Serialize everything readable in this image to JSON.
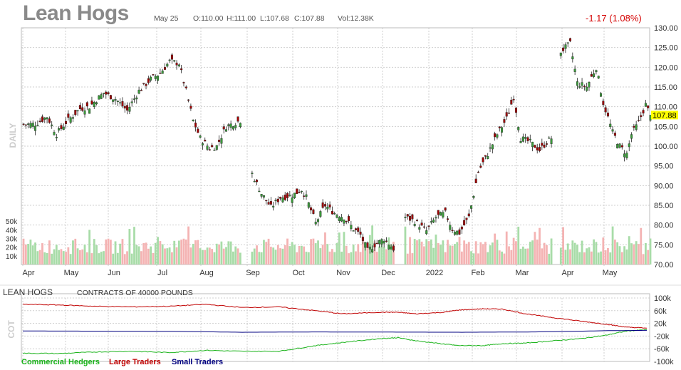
{
  "header": {
    "title": "Lean Hogs",
    "date": "May 25",
    "open": "O:110.00",
    "high": "H:111.00",
    "low": "L:107.68",
    "close": "C:107.88",
    "volume": "Vol:12.38K",
    "change": "-1.17 (1.08%)",
    "last_price_tag": "107.88",
    "side_label": "DAILY"
  },
  "colors": {
    "up": "#3a9c3a",
    "down": "#a00000",
    "vol_up": "#a8dca8",
    "vol_down": "#f4b3b3",
    "tag": "#ffff00",
    "commercial": "#1bb31b",
    "large": "#c00000",
    "small": "#000080"
  },
  "chart_data": [
    {
      "type": "candlestick",
      "x_labels": [
        "Apr",
        "May",
        "Jun",
        "Jul",
        "Aug",
        "Sep",
        "Oct",
        "Nov",
        "Dec",
        "2022",
        "Feb",
        "Mar",
        "Apr",
        "May"
      ],
      "y_ticks": [
        "130.00",
        "125.00",
        "120.00",
        "115.00",
        "110.00",
        "105.00",
        "100.00",
        "95.00",
        "90.00",
        "85.00",
        "80.00",
        "75.00",
        "70.00"
      ],
      "ylim": [
        70,
        130
      ],
      "last_close": 107.88,
      "close_path": [
        [
          0,
          105.5
        ],
        [
          5,
          105.6
        ],
        [
          10,
          107.5
        ],
        [
          14,
          103.0
        ],
        [
          18,
          106.0
        ],
        [
          24,
          109.5
        ],
        [
          28,
          110.0
        ],
        [
          34,
          113.5
        ],
        [
          39,
          112.0
        ],
        [
          44,
          109.0
        ],
        [
          49,
          114.0
        ],
        [
          54,
          117.0
        ],
        [
          58,
          118.5
        ],
        [
          62,
          121.5
        ],
        [
          66,
          121.0
        ],
        [
          69,
          114.0
        ],
        [
          72,
          106.5
        ],
        [
          75,
          102.0
        ],
        [
          79,
          99.5
        ],
        [
          82,
          100.0
        ],
        [
          86,
          105.0
        ],
        [
          90,
          106.0
        ],
        [
          92,
          106.5
        ],
        [
          97,
          93.0
        ],
        [
          101,
          88.0
        ],
        [
          105,
          84.5
        ],
        [
          109,
          87.0
        ],
        [
          114,
          87.5
        ],
        [
          118,
          89.0
        ],
        [
          120,
          87.0
        ],
        [
          124,
          80.5
        ],
        [
          128,
          85.0
        ],
        [
          132,
          83.0
        ],
        [
          136,
          82.0
        ],
        [
          140,
          79.0
        ],
        [
          143,
          77.5
        ],
        [
          146,
          73.5
        ],
        [
          149,
          75.0
        ],
        [
          153,
          76.5
        ],
        [
          157,
          74.0
        ],
        [
          162,
          82.0
        ],
        [
          166,
          81.0
        ],
        [
          171,
          78.5
        ],
        [
          175,
          82.0
        ],
        [
          179,
          83.0
        ],
        [
          182,
          79.0
        ],
        [
          185,
          78.0
        ],
        [
          189,
          82.0
        ],
        [
          193,
          93.5
        ],
        [
          197,
          98.0
        ],
        [
          201,
          103.0
        ],
        [
          205,
          107.0
        ],
        [
          208,
          112.5
        ],
        [
          211,
          102.0
        ],
        [
          215,
          101.0
        ],
        [
          219,
          99.0
        ],
        [
          222,
          101.0
        ],
        [
          224,
          102.0
        ],
        [
          228,
          124.0
        ],
        [
          232,
          126.0
        ],
        [
          235,
          116.0
        ],
        [
          239,
          115.0
        ],
        [
          243,
          120.0
        ],
        [
          246,
          111.0
        ],
        [
          250,
          103.5
        ],
        [
          253,
          100.0
        ],
        [
          256,
          98.0
        ],
        [
          258,
          103.0
        ],
        [
          261,
          106.0
        ],
        [
          264,
          110.5
        ],
        [
          266,
          107.88
        ]
      ],
      "candles_count": 266
    },
    {
      "type": "bar",
      "name": "volume",
      "y_ticks": [
        "50k",
        "40k",
        "30k",
        "20k",
        "10k"
      ],
      "ylim": [
        0,
        55000
      ]
    },
    {
      "type": "line",
      "title": "LEAN HOGS",
      "subtitle": "CONTRACTS OF 40000 POUNDS",
      "side_label": "COT",
      "y_ticks": [
        "100k",
        "60k",
        "20k",
        "-20k",
        "-60k",
        "-100k"
      ],
      "ylim": [
        -100000,
        100000
      ],
      "series": [
        {
          "name": "Commercial Hedgers",
          "values": [
            [
              0,
              -74000
            ],
            [
              20,
              -75000
            ],
            [
              40,
              -70000
            ],
            [
              60,
              -68000
            ],
            [
              80,
              -72000
            ],
            [
              100,
              -65000
            ],
            [
              120,
              -68000
            ],
            [
              140,
              -68000
            ],
            [
              160,
              -50000
            ],
            [
              175,
              -40000
            ],
            [
              195,
              -28000
            ],
            [
              205,
              -25000
            ],
            [
              215,
              -35000
            ],
            [
              230,
              -45000
            ],
            [
              238,
              -50000
            ],
            [
              252,
              -50000
            ],
            [
              262,
              -44000
            ],
            [
              275,
              -42000
            ],
            [
              290,
              -35000
            ],
            [
              305,
              -28000
            ],
            [
              318,
              -18000
            ],
            [
              330,
              -4000
            ],
            [
              341,
              0
            ]
          ]
        },
        {
          "name": "Large Traders",
          "values": [
            [
              0,
              80000
            ],
            [
              20,
              78000
            ],
            [
              40,
              74000
            ],
            [
              60,
              72000
            ],
            [
              80,
              74000
            ],
            [
              100,
              80000
            ],
            [
              120,
              70000
            ],
            [
              140,
              72000
            ],
            [
              160,
              60000
            ],
            [
              175,
              50000
            ],
            [
              195,
              55000
            ],
            [
              205,
              55000
            ],
            [
              215,
              50000
            ],
            [
              230,
              55000
            ],
            [
              238,
              62000
            ],
            [
              252,
              66000
            ],
            [
              262,
              65000
            ],
            [
              275,
              50000
            ],
            [
              290,
              38000
            ],
            [
              305,
              27000
            ],
            [
              318,
              18000
            ],
            [
              330,
              8000
            ],
            [
              341,
              5000
            ]
          ]
        },
        {
          "name": "Small Traders",
          "values": [
            [
              0,
              -4000
            ],
            [
              40,
              -4500
            ],
            [
              80,
              -5000
            ],
            [
              120,
              -8000
            ],
            [
              160,
              -7000
            ],
            [
              200,
              -7500
            ],
            [
              240,
              -8000
            ],
            [
              280,
              -7000
            ],
            [
              320,
              -3000
            ],
            [
              341,
              -2000
            ]
          ]
        }
      ]
    }
  ]
}
